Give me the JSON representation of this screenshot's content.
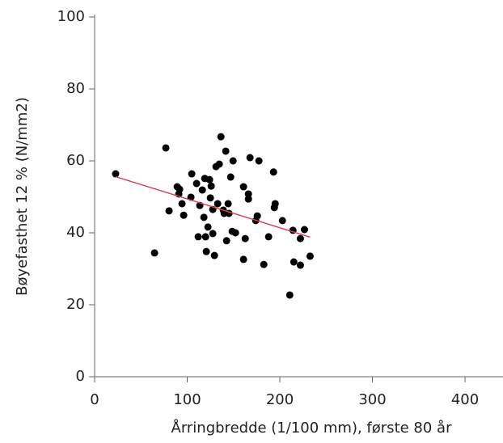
{
  "chart_data": {
    "type": "scatter",
    "x_label": "Årringbredde (1/100 mm), første 80 år",
    "y_label": "Bøyefasthet 12 % (N/mm2)",
    "color": "#000000",
    "x": [
      22.7,
      76.9,
      64.7,
      80.4,
      89.2,
      91.8,
      90.9,
      96.2,
      94.4,
      104.9,
      104.0,
      110.1,
      111.9,
      113.6,
      116.3,
      118.9,
      118.0,
      119.8,
      120.6,
      122.4,
      124.1,
      125.9,
      125.0,
      127.6,
      127.6,
      129.4,
      131.1,
      134.6,
      132.9,
      136.4,
      139.0,
      139.9,
      141.6,
      142.5,
      144.2,
      145.1,
      146.9,
      149.5,
      148.6,
      152.1,
      160.8,
      162.6,
      160.8,
      166.1,
      166.1,
      167.8,
      174.0,
      175.7,
      177.4,
      182.7,
      187.9,
      193.2,
      194.1,
      195.0,
      202.8,
      210.7,
      215.1,
      214.2,
      222.2,
      222.2,
      226.6,
      232.7
    ],
    "y": [
      56.4,
      63.6,
      34.4,
      46.1,
      52.8,
      52.1,
      50.8,
      44.9,
      48.1,
      56.4,
      49.9,
      53.7,
      38.9,
      47.6,
      51.9,
      55.1,
      44.3,
      38.9,
      34.8,
      41.6,
      54.8,
      53.0,
      49.7,
      46.5,
      39.8,
      33.7,
      58.4,
      59.1,
      48.1,
      66.7,
      46.3,
      45.4,
      62.7,
      37.8,
      48.1,
      45.4,
      55.5,
      60.0,
      40.4,
      40.0,
      32.6,
      38.4,
      52.8,
      50.8,
      49.4,
      60.9,
      43.4,
      44.7,
      60.0,
      31.2,
      38.9,
      56.9,
      47.0,
      48.1,
      43.4,
      22.7,
      31.9,
      40.7,
      31.0,
      38.4,
      40.9,
      33.5
    ],
    "trend_line": {
      "x": [
        22.7,
        232.7
      ],
      "y": [
        55.6,
        38.8
      ],
      "color": "#d9434d"
    },
    "xlim": [
      0,
      441
    ],
    "ylim": [
      0,
      100
    ],
    "xticks": [
      0,
      100,
      200,
      300,
      400
    ],
    "yticks": [
      0,
      20,
      40,
      60,
      80,
      100
    ]
  }
}
